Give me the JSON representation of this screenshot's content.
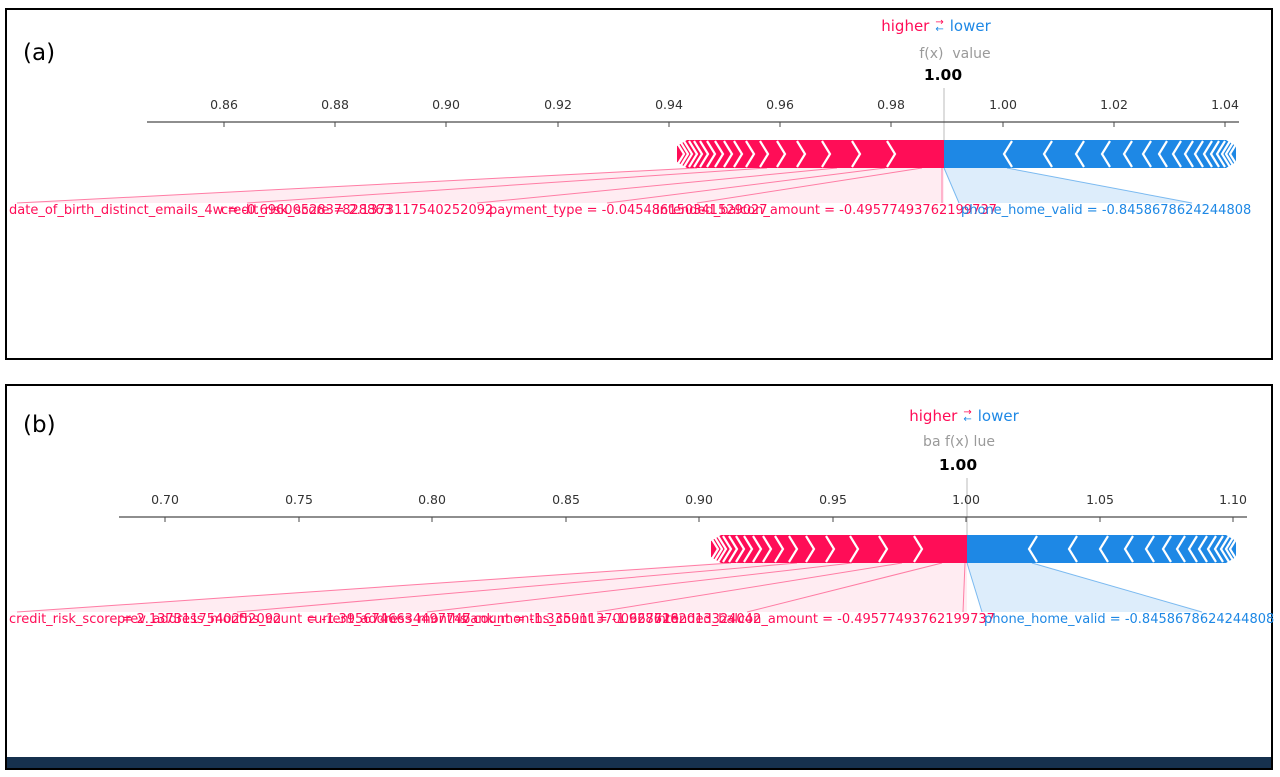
{
  "colors": {
    "higher": "#ff0d57",
    "lower": "#1e88e5",
    "axis": "#4a4a4a",
    "muted": "#9a9a9a"
  },
  "panels": [
    {
      "label": "(a)",
      "legend": {
        "higher": "higher",
        "lower": "lower"
      },
      "fx_row": "f(x)  value",
      "fx_value": "1.00",
      "ticks": [
        "0.86",
        "0.88",
        "0.90",
        "0.92",
        "0.94",
        "0.96",
        "0.98",
        "1.00",
        "1.02",
        "1.04"
      ],
      "pink_labels": [
        "date_of_birth_distinct_emails_4w = -0.6960052837828863",
        "credit_risk_score = 2.1373117540252092",
        "payment_type = -0.045486150341529027",
        "intended_balcon_amount = -0.49577493762199737"
      ],
      "blue_labels": [
        "phone_home_valid = -0.8458678624244808"
      ]
    },
    {
      "label": "(b)",
      "legend": {
        "higher": "higher",
        "lower": "lower"
      },
      "fx_row": "ba f(x) lue",
      "fx_value": "1.00",
      "ticks": [
        "0.70",
        "0.75",
        "0.80",
        "0.85",
        "0.90",
        "0.95",
        "1.00",
        "1.05",
        "1.10"
      ],
      "pink_labels": [
        "credit_risk_score = 2.1373117540252092",
        "prev_address_months_count = -1.3956746634497747",
        "current_address_months_count = -1.3359113700667728",
        "bank_months_count = -1.9286162013324042",
        "intended_balcon_amount = -0.49577493762199737"
      ],
      "blue_labels": [
        "phone_home_valid = -0.8458678624244808"
      ]
    }
  ],
  "chart_data": [
    {
      "type": "force-plot (SHAP)",
      "panel": "a",
      "fx": 1.0,
      "x_axis": {
        "min": 0.85,
        "max": 1.05,
        "ticks": [
          0.86,
          0.88,
          0.9,
          0.92,
          0.94,
          0.96,
          0.98,
          1.0,
          1.02,
          1.04
        ]
      },
      "legend": [
        "higher",
        "lower"
      ],
      "higher_features": [
        {
          "name": "date_of_birth_distinct_emails_4w",
          "value": -0.6960052837828863
        },
        {
          "name": "credit_risk_score",
          "value": 2.1373117540252093
        },
        {
          "name": "payment_type",
          "value": -0.04548615034152903
        },
        {
          "name": "intended_balcon_amount",
          "value": -0.49577493762199737
        }
      ],
      "lower_features": [
        {
          "name": "phone_home_valid",
          "value": -0.8458678624244808
        }
      ]
    },
    {
      "type": "force-plot (SHAP)",
      "panel": "b",
      "fx": 1.0,
      "x_axis": {
        "min": 0.68,
        "max": 1.11,
        "ticks": [
          0.7,
          0.75,
          0.8,
          0.85,
          0.9,
          0.95,
          1.0,
          1.05,
          1.1
        ]
      },
      "legend": [
        "higher",
        "lower"
      ],
      "higher_features": [
        {
          "name": "credit_risk_score",
          "value": 2.1373117540252093
        },
        {
          "name": "prev_address_months_count",
          "value": -1.3956746634497748
        },
        {
          "name": "current_address_months_count",
          "value": -1.3359113700667729
        },
        {
          "name": "bank_months_count",
          "value": -1.9286162013324042
        },
        {
          "name": "intended_balcon_amount",
          "value": -0.49577493762199737
        }
      ],
      "lower_features": [
        {
          "name": "phone_home_valid",
          "value": -0.8458678624244808
        }
      ]
    }
  ]
}
